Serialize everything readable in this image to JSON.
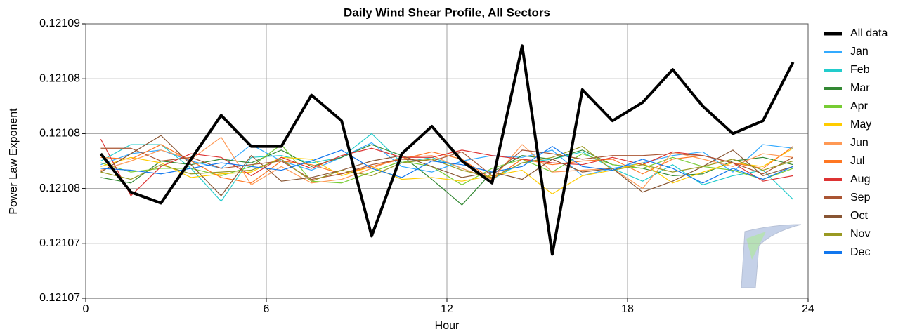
{
  "chart_data": {
    "type": "line",
    "title": "Daily Wind Shear Profile, All Sectors",
    "xlabel": "Hour",
    "ylabel": "Power Law Exponent",
    "x": [
      0.5,
      1.5,
      2.5,
      3.5,
      4.5,
      5.5,
      6.5,
      7.5,
      8.5,
      9.5,
      10.5,
      11.5,
      12.5,
      13.5,
      14.5,
      15.5,
      16.5,
      17.5,
      18.5,
      19.5,
      20.5,
      21.5,
      22.5,
      23.5
    ],
    "xlim": [
      0,
      24
    ],
    "xticks": [
      0,
      6,
      12,
      18,
      24
    ],
    "ylim": [
      0.1210715,
      0.1210865
    ],
    "yticks": [
      {
        "value": 0.1210715,
        "label": "0.12107"
      },
      {
        "value": 0.1210745,
        "label": "0.12107"
      },
      {
        "value": 0.1210775,
        "label": "0.12108"
      },
      {
        "value": 0.1210805,
        "label": "0.12108"
      },
      {
        "value": 0.1210835,
        "label": "0.12108"
      },
      {
        "value": 0.1210865,
        "label": "0.12109"
      }
    ],
    "grid": true,
    "legend": "right",
    "series": [
      {
        "name": "All data",
        "color": "#000000",
        "values": [
          0.1210794,
          0.1210773,
          0.1210767,
          0.1210791,
          0.1210815,
          0.1210798,
          0.1210798,
          0.1210826,
          0.1210812,
          0.1210749,
          0.1210794,
          0.1210809,
          0.121079,
          0.1210778,
          0.1210853,
          0.1210739,
          0.1210829,
          0.1210812,
          0.1210822,
          0.121084,
          0.121082,
          0.1210805,
          0.1210812,
          0.1210844
        ]
      },
      {
        "name": "Jan",
        "color": "#33aaff",
        "values": [
          0.1210788,
          0.1210794,
          0.1210796,
          0.121079,
          0.1210786,
          0.1210799,
          0.121079,
          0.1210785,
          0.1210792,
          0.12108,
          0.1210787,
          0.1210784,
          0.121079,
          0.1210793,
          0.1210792,
          0.1210796,
          0.1210782,
          0.1210786,
          0.1210789,
          0.1210793,
          0.1210795,
          0.1210784,
          0.1210799,
          0.1210797
        ]
      },
      {
        "name": "Feb",
        "color": "#22cccc",
        "values": [
          0.121079,
          0.1210799,
          0.1210799,
          0.1210786,
          0.1210768,
          0.1210792,
          0.1210793,
          0.1210789,
          0.1210792,
          0.1210805,
          0.1210789,
          0.1210792,
          0.1210786,
          0.121078,
          0.1210789,
          0.1210791,
          0.1210795,
          0.1210786,
          0.1210779,
          0.1210788,
          0.1210777,
          0.1210782,
          0.1210785,
          0.1210769
        ]
      },
      {
        "name": "Mar",
        "color": "#338833",
        "values": [
          0.1210781,
          0.1210778,
          0.121079,
          0.1210788,
          0.1210791,
          0.1210789,
          0.1210796,
          0.1210787,
          0.1210792,
          0.1210799,
          0.1210793,
          0.121078,
          0.1210766,
          0.1210784,
          0.1210793,
          0.1210791,
          0.1210796,
          0.1210788,
          0.1210786,
          0.1210782,
          0.1210783,
          0.121079,
          0.1210792,
          0.1210788
        ]
      },
      {
        "name": "Apr",
        "color": "#77cc33",
        "values": [
          0.1210789,
          0.1210784,
          0.1210786,
          0.1210786,
          0.1210782,
          0.1210787,
          0.1210799,
          0.1210779,
          0.1210778,
          0.1210784,
          0.121079,
          0.1210787,
          0.1210777,
          0.1210786,
          0.1210791,
          0.1210784,
          0.1210794,
          0.1210788,
          0.1210786,
          0.1210792,
          0.1210787,
          0.1210785,
          0.121078,
          0.1210786
        ]
      },
      {
        "name": "May",
        "color": "#ffcc00",
        "values": [
          0.1210787,
          0.1210792,
          0.1210789,
          0.1210781,
          0.1210783,
          0.1210784,
          0.1210792,
          0.1210791,
          0.1210782,
          0.1210787,
          0.121078,
          0.1210781,
          0.1210779,
          0.1210782,
          0.1210785,
          0.1210772,
          0.1210782,
          0.1210785,
          0.1210789,
          0.1210778,
          0.1210784,
          0.1210789,
          0.1210787,
          0.1210797
        ]
      },
      {
        "name": "Jun",
        "color": "#ff9955",
        "values": [
          0.1210785,
          0.121079,
          0.1210796,
          0.1210791,
          0.1210803,
          0.1210777,
          0.1210787,
          0.1210778,
          0.121078,
          0.1210786,
          0.1210792,
          0.1210793,
          0.1210786,
          0.121078,
          0.1210799,
          0.1210784,
          0.1210785,
          0.1210786,
          0.1210775,
          0.1210795,
          0.1210791,
          0.1210787,
          0.1210794,
          0.1210792
        ]
      },
      {
        "name": "Jul",
        "color": "#ff7722",
        "values": [
          0.1210792,
          0.1210791,
          0.1210799,
          0.121079,
          0.1210781,
          0.1210778,
          0.121079,
          0.1210788,
          0.1210783,
          0.1210787,
          0.1210791,
          0.1210795,
          0.1210791,
          0.121078,
          0.1210791,
          0.1210788,
          0.121079,
          0.1210791,
          0.1210783,
          0.1210791,
          0.1210793,
          0.1210789,
          0.1210786,
          0.1210798
        ]
      },
      {
        "name": "Aug",
        "color": "#dd3333",
        "values": [
          0.1210802,
          0.1210771,
          0.1210787,
          0.1210794,
          0.1210792,
          0.1210782,
          0.1210792,
          0.1210786,
          0.1210793,
          0.1210797,
          0.1210792,
          0.1210792,
          0.1210796,
          0.1210793,
          0.1210791,
          0.1210789,
          0.1210788,
          0.1210792,
          0.1210788,
          0.1210795,
          0.1210793,
          0.1210789,
          0.1210779,
          0.1210782
        ]
      },
      {
        "name": "Sep",
        "color": "#aa5533",
        "values": [
          0.1210797,
          0.1210797,
          0.121079,
          0.1210792,
          0.1210786,
          0.1210788,
          0.121079,
          0.121078,
          0.1210783,
          0.1210788,
          0.1210791,
          0.121079,
          0.1210795,
          0.1210782,
          0.1210796,
          0.1210794,
          0.1210791,
          0.1210793,
          0.1210793,
          0.1210794,
          0.1210793,
          0.1210789,
          0.1210783,
          0.1210792
        ]
      },
      {
        "name": "Oct",
        "color": "#885533",
        "values": [
          0.1210784,
          0.1210794,
          0.1210804,
          0.1210788,
          0.1210771,
          0.1210793,
          0.1210779,
          0.1210781,
          0.1210785,
          0.121079,
          0.1210793,
          0.1210787,
          0.1210781,
          0.1210784,
          0.121078,
          0.1210791,
          0.1210784,
          0.1210786,
          0.1210773,
          0.1210779,
          0.1210787,
          0.1210796,
          0.1210782,
          0.1210787
        ]
      },
      {
        "name": "Nov",
        "color": "#999922",
        "values": [
          0.1210784,
          0.121078,
          0.1210788,
          0.1210783,
          0.1210784,
          0.1210785,
          0.1210791,
          0.1210779,
          0.1210785,
          0.1210782,
          0.1210789,
          0.1210791,
          0.1210785,
          0.1210781,
          0.1210789,
          0.1210792,
          0.1210798,
          0.1210785,
          0.1210788,
          0.1210784,
          0.1210787,
          0.1210791,
          0.1210785,
          0.121079
        ]
      },
      {
        "name": "Dec",
        "color": "#1177ee",
        "values": [
          0.1210786,
          0.1210785,
          0.1210783,
          0.1210786,
          0.1210789,
          0.1210787,
          0.1210785,
          0.121079,
          0.1210796,
          0.1210786,
          0.1210781,
          0.121079,
          0.1210788,
          0.1210784,
          0.1210787,
          0.1210798,
          0.1210787,
          0.1210785,
          0.1210791,
          0.1210786,
          0.1210778,
          0.1210786,
          0.121078,
          0.1210787
        ]
      }
    ]
  }
}
